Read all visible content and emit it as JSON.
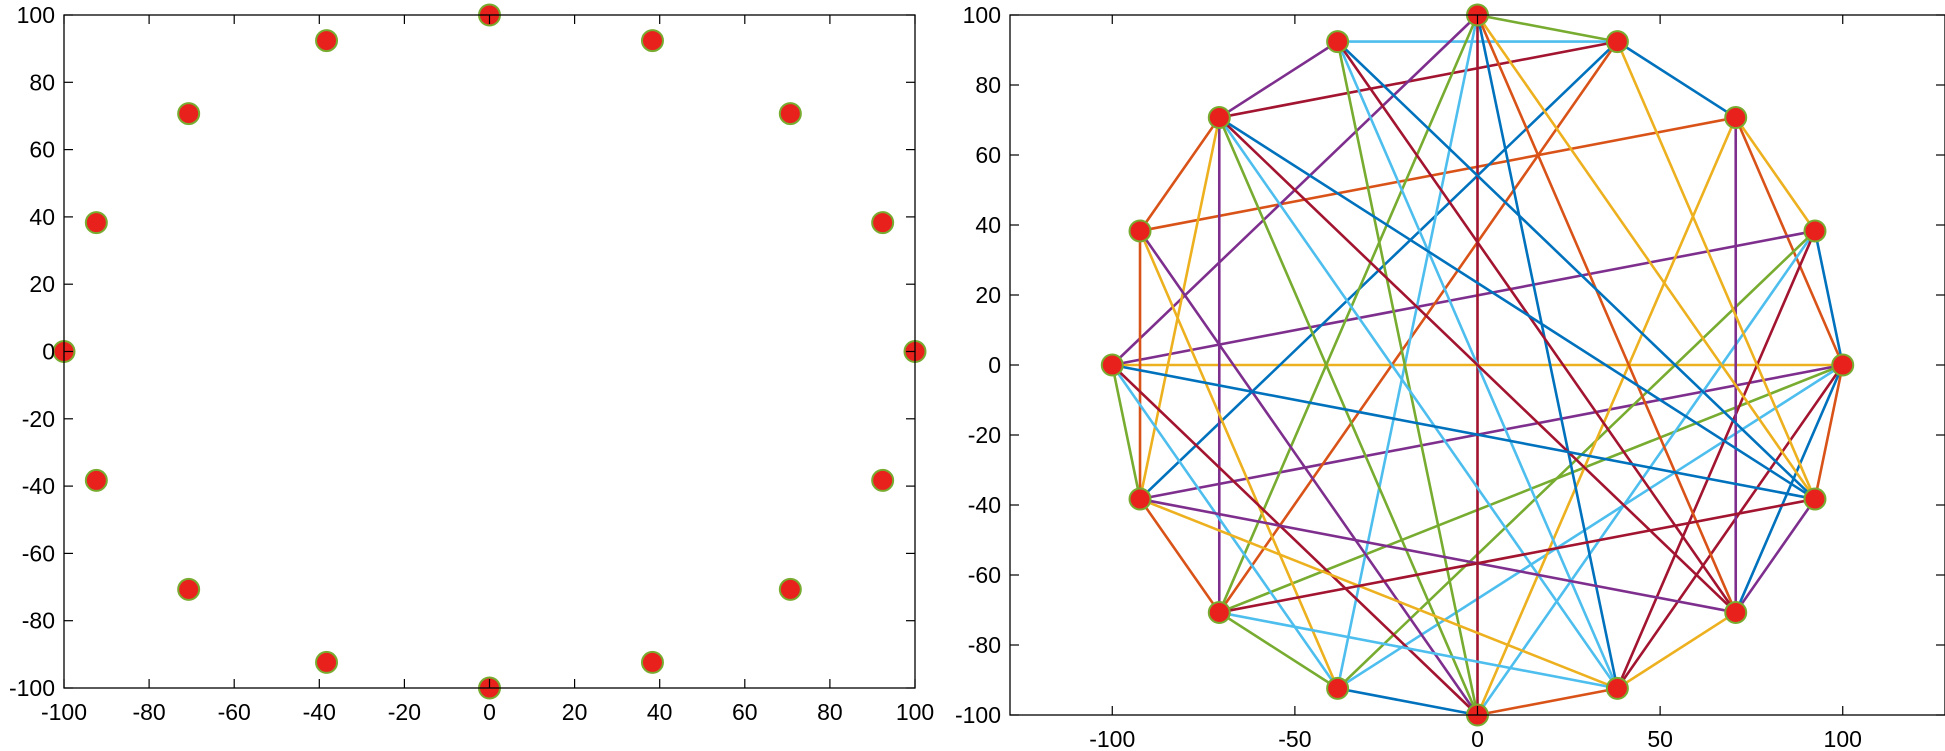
{
  "colors": {
    "node_fill": "#e8211d",
    "node_edge": "#77ac30",
    "edge_palette": [
      "#0072bd",
      "#d95319",
      "#edb120",
      "#7e2f8e",
      "#77ac30",
      "#4dbeee",
      "#a2142f"
    ]
  },
  "chart_data": [
    {
      "type": "scatter",
      "title": "",
      "xlabel": "",
      "ylabel": "",
      "xlim": [
        -100,
        100
      ],
      "ylim": [
        -100,
        100
      ],
      "xticks": [
        -100,
        -80,
        -60,
        -40,
        -20,
        0,
        20,
        40,
        60,
        80,
        100
      ],
      "yticks": [
        -100,
        -80,
        -60,
        -40,
        -20,
        0,
        20,
        40,
        60,
        80,
        100
      ],
      "xtick_labels": [
        "-100",
        "-80",
        "-60",
        "-40",
        "-20",
        "0",
        "20",
        "40",
        "60",
        "80",
        "100"
      ],
      "ytick_labels": [
        "-100",
        "-80",
        "-60",
        "-40",
        "-20",
        "0",
        "20",
        "40",
        "60",
        "80",
        "100"
      ],
      "grid": false,
      "points": [
        [
          100,
          0
        ],
        [
          92.4,
          38.3
        ],
        [
          70.7,
          70.7
        ],
        [
          38.3,
          92.4
        ],
        [
          0,
          100
        ],
        [
          -38.3,
          92.4
        ],
        [
          -70.7,
          70.7
        ],
        [
          -92.4,
          38.3
        ],
        [
          -100,
          0
        ],
        [
          -92.4,
          -38.3
        ],
        [
          -70.7,
          -70.7
        ],
        [
          -38.3,
          -92.4
        ],
        [
          0,
          -100
        ],
        [
          38.3,
          -92.4
        ],
        [
          70.7,
          -70.7
        ],
        [
          92.4,
          -38.3
        ]
      ]
    },
    {
      "type": "network",
      "title": "",
      "xlabel": "",
      "ylabel": "",
      "xlim": [
        -128,
        128
      ],
      "ylim": [
        -100,
        100
      ],
      "xticks": [
        -100,
        -50,
        0,
        50,
        100
      ],
      "yticks": [
        -100,
        -80,
        -60,
        -40,
        -20,
        0,
        20,
        40,
        60,
        80,
        100
      ],
      "xtick_labels": [
        "-100",
        "-50",
        "0",
        "50",
        "100"
      ],
      "ytick_labels": [
        "-100",
        "-80",
        "-60",
        "-40",
        "-20",
        "0",
        "20",
        "40",
        "60",
        "80",
        "100"
      ],
      "grid": false,
      "nodes": [
        [
          100,
          0
        ],
        [
          92.4,
          38.3
        ],
        [
          70.7,
          70.7
        ],
        [
          38.3,
          92.4
        ],
        [
          0,
          100
        ],
        [
          -38.3,
          92.4
        ],
        [
          -70.7,
          70.7
        ],
        [
          -92.4,
          38.3
        ],
        [
          -100,
          0
        ],
        [
          -92.4,
          -38.3
        ],
        [
          -70.7,
          -70.7
        ],
        [
          -38.3,
          -92.4
        ],
        [
          0,
          -100
        ],
        [
          38.3,
          -92.4
        ],
        [
          70.7,
          -70.7
        ],
        [
          92.4,
          -38.3
        ]
      ],
      "edges": [
        [
          0,
          1
        ],
        [
          0,
          2
        ],
        [
          0,
          8
        ],
        [
          0,
          9
        ],
        [
          0,
          10
        ],
        [
          0,
          11
        ],
        [
          0,
          13
        ],
        [
          0,
          14
        ],
        [
          0,
          15
        ],
        [
          1,
          2
        ],
        [
          1,
          8
        ],
        [
          1,
          11
        ],
        [
          1,
          12
        ],
        [
          1,
          13
        ],
        [
          2,
          3
        ],
        [
          2,
          7
        ],
        [
          2,
          12
        ],
        [
          2,
          14
        ],
        [
          3,
          4
        ],
        [
          3,
          5
        ],
        [
          3,
          6
        ],
        [
          3,
          9
        ],
        [
          3,
          10
        ],
        [
          3,
          15
        ],
        [
          4,
          8
        ],
        [
          4,
          10
        ],
        [
          4,
          11
        ],
        [
          4,
          12
        ],
        [
          4,
          13
        ],
        [
          4,
          14
        ],
        [
          4,
          15
        ],
        [
          5,
          6
        ],
        [
          5,
          12
        ],
        [
          5,
          13
        ],
        [
          5,
          14
        ],
        [
          5,
          15
        ],
        [
          6,
          7
        ],
        [
          6,
          9
        ],
        [
          6,
          10
        ],
        [
          6,
          12
        ],
        [
          6,
          13
        ],
        [
          6,
          14
        ],
        [
          6,
          15
        ],
        [
          7,
          9
        ],
        [
          7,
          11
        ],
        [
          7,
          12
        ],
        [
          8,
          9
        ],
        [
          8,
          11
        ],
        [
          8,
          12
        ],
        [
          8,
          15
        ],
        [
          9,
          10
        ],
        [
          9,
          13
        ],
        [
          9,
          14
        ],
        [
          10,
          11
        ],
        [
          10,
          13
        ],
        [
          10,
          15
        ],
        [
          11,
          12
        ],
        [
          12,
          13
        ],
        [
          13,
          14
        ],
        [
          14,
          15
        ]
      ]
    }
  ]
}
